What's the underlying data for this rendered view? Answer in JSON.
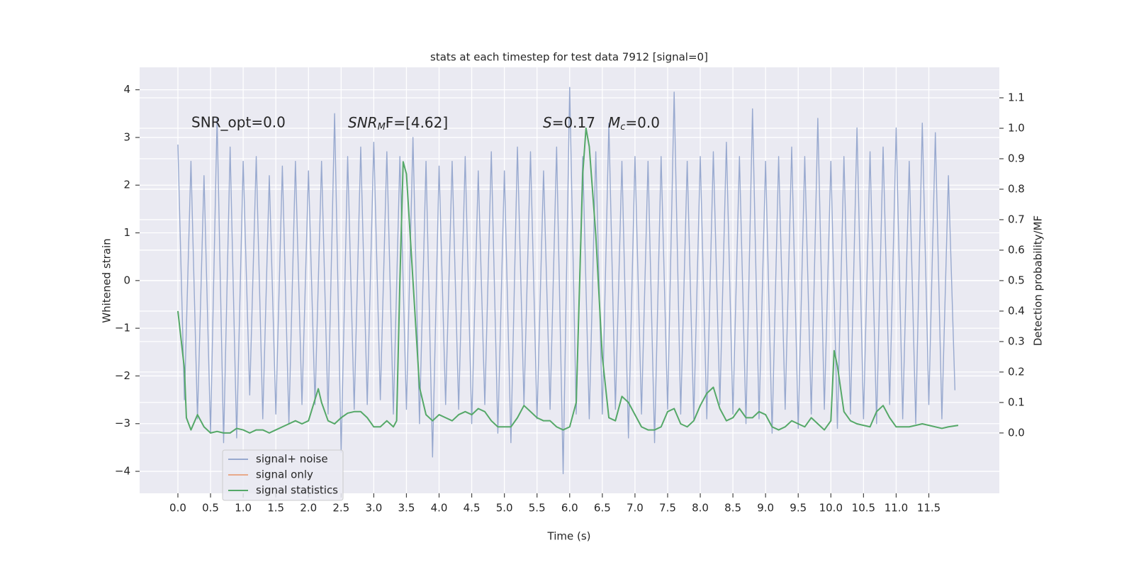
{
  "chart_data": {
    "type": "line",
    "title": "stats at each timestep for test data 7912 [signal=0]",
    "xlabel": "Time (s)",
    "ylabel": "Whitened strain",
    "y2label": "Detection probability/MF",
    "annotations": [
      {
        "text": "SNR_opt=0.0"
      },
      {
        "base": "SNR",
        "sub": "M",
        "rest": "F=[4.62]"
      },
      {
        "base": "S",
        "rest": "=0.17"
      },
      {
        "base": "M",
        "sub": "c",
        "rest": "=0.0"
      }
    ],
    "xlim": [
      -0.586,
      12.58
    ],
    "ylim": [
      -4.46,
      4.47
    ],
    "y2lim": [
      -0.198,
      1.2
    ],
    "xticks": [
      {
        "value": 0,
        "label": "0.0"
      },
      0.5,
      {
        "value": 1,
        "label": "1.0"
      },
      1.5,
      {
        "value": 2,
        "label": "2.0"
      },
      2.5,
      {
        "value": 3,
        "label": "3.0"
      },
      3.5,
      {
        "value": 4,
        "label": "4.0"
      },
      4.5,
      {
        "value": 5,
        "label": "5.0"
      },
      5.5,
      {
        "value": 6,
        "label": "6.0"
      },
      6.5,
      {
        "value": 7,
        "label": "7.0"
      },
      7.5,
      {
        "value": 8,
        "label": "8.0"
      },
      8.5,
      {
        "value": 9,
        "label": "9.0"
      },
      9.5,
      {
        "value": 10,
        "label": "10.0"
      },
      10.5,
      {
        "value": 11,
        "label": "11.0"
      },
      11.5
    ],
    "yticks": [
      {
        "value": -4,
        "label": "−4"
      },
      {
        "value": -3,
        "label": "−3"
      },
      {
        "value": -2,
        "label": "−2"
      },
      {
        "value": -1,
        "label": "−1"
      },
      0,
      1,
      2,
      3,
      4
    ],
    "y2ticks": [
      {
        "value": 0,
        "label": "0.0"
      },
      0.1,
      0.2,
      0.3,
      0.4,
      0.5,
      0.6,
      0.7,
      0.8,
      0.9,
      {
        "value": 1,
        "label": "1.0"
      },
      1.1
    ],
    "grid": true,
    "legend": "lower left",
    "series": [
      {
        "name": "signal+ noise",
        "color": "#98a9cf",
        "x": [
          0.0,
          0.1,
          0.2,
          0.3,
          0.4,
          0.5,
          0.6,
          0.7,
          0.8,
          0.9,
          1.0,
          1.1,
          1.2,
          1.3,
          1.4,
          1.5,
          1.6,
          1.7,
          1.8,
          1.9,
          2.0,
          2.1,
          2.2,
          2.3,
          2.4,
          2.5,
          2.6,
          2.7,
          2.8,
          2.9,
          3.0,
          3.1,
          3.2,
          3.3,
          3.4,
          3.5,
          3.6,
          3.7,
          3.8,
          3.9,
          4.0,
          4.1,
          4.2,
          4.3,
          4.4,
          4.5,
          4.6,
          4.7,
          4.8,
          4.9,
          5.0,
          5.1,
          5.2,
          5.3,
          5.4,
          5.5,
          5.6,
          5.7,
          5.8,
          5.9,
          6.0,
          6.1,
          6.2,
          6.3,
          6.4,
          6.5,
          6.6,
          6.7,
          6.8,
          6.9,
          7.0,
          7.1,
          7.2,
          7.3,
          7.4,
          7.5,
          7.6,
          7.7,
          7.8,
          7.9,
          8.0,
          8.1,
          8.2,
          8.3,
          8.4,
          8.5,
          8.6,
          8.7,
          8.8,
          8.9,
          9.0,
          9.1,
          9.2,
          9.3,
          9.4,
          9.5,
          9.6,
          9.7,
          9.8,
          9.9,
          10.0,
          10.1,
          10.2,
          10.3,
          10.4,
          10.5,
          10.6,
          10.7,
          10.8,
          10.9,
          11.0,
          11.1,
          11.2,
          11.3,
          11.4,
          11.5,
          11.6,
          11.7,
          11.8,
          11.9
        ],
        "values": [
          2.85,
          -2.5,
          2.5,
          -2.9,
          2.2,
          -3.2,
          3.4,
          -3.4,
          2.8,
          -3.3,
          2.5,
          -2.4,
          2.6,
          -2.9,
          2.2,
          -2.8,
          2.4,
          -3.0,
          2.5,
          -2.6,
          2.3,
          -2.6,
          2.5,
          -2.8,
          3.5,
          -3.6,
          2.6,
          -2.7,
          2.8,
          -2.6,
          2.9,
          -2.5,
          2.7,
          -2.8,
          2.6,
          -2.7,
          3.0,
          -3.0,
          2.5,
          -3.7,
          2.4,
          -2.6,
          2.5,
          -2.7,
          2.6,
          -3.0,
          2.3,
          -2.6,
          2.7,
          -3.2,
          2.3,
          -3.4,
          2.8,
          -2.6,
          2.7,
          -2.9,
          2.3,
          -2.7,
          2.8,
          -4.05,
          4.05,
          -2.8,
          2.6,
          -2.9,
          2.7,
          -2.8,
          3.3,
          -2.7,
          2.5,
          -3.3,
          2.6,
          -2.8,
          2.5,
          -3.4,
          2.6,
          -2.7,
          3.95,
          -2.8,
          2.5,
          -2.9,
          2.6,
          -2.9,
          2.7,
          -2.6,
          2.9,
          -2.8,
          2.6,
          -3.0,
          3.6,
          -2.9,
          2.5,
          -3.2,
          2.6,
          -2.7,
          2.8,
          -3.1,
          2.6,
          -2.8,
          3.4,
          -2.7,
          2.5,
          -3.1,
          2.6,
          -2.8,
          3.2,
          -2.9,
          2.7,
          -3.0,
          2.8,
          -2.6,
          3.2,
          -2.9,
          2.5,
          -3.0,
          3.3,
          -2.6,
          3.1,
          -2.9,
          2.2,
          -2.3
        ]
      },
      {
        "name": "signal only",
        "color": "#e8a98a"
      },
      {
        "name": "signal statistics",
        "color": "#55a868",
        "axis": "y2",
        "x": [
          0.0,
          0.1,
          0.13,
          0.2,
          0.3,
          0.4,
          0.5,
          0.6,
          0.7,
          0.8,
          0.9,
          1.0,
          1.1,
          1.2,
          1.3,
          1.4,
          1.5,
          1.6,
          1.7,
          1.8,
          1.9,
          2.0,
          2.1,
          2.15,
          2.2,
          2.3,
          2.4,
          2.5,
          2.6,
          2.7,
          2.8,
          2.9,
          3.0,
          3.1,
          3.2,
          3.3,
          3.35,
          3.4,
          3.45,
          3.5,
          3.6,
          3.7,
          3.8,
          3.9,
          4.0,
          4.1,
          4.2,
          4.3,
          4.4,
          4.5,
          4.6,
          4.7,
          4.8,
          4.9,
          5.0,
          5.1,
          5.2,
          5.3,
          5.4,
          5.5,
          5.6,
          5.7,
          5.8,
          5.9,
          6.0,
          6.1,
          6.2,
          6.25,
          6.3,
          6.4,
          6.5,
          6.6,
          6.7,
          6.8,
          6.9,
          7.0,
          7.1,
          7.2,
          7.3,
          7.4,
          7.5,
          7.6,
          7.7,
          7.8,
          7.9,
          8.0,
          8.1,
          8.2,
          8.3,
          8.4,
          8.5,
          8.6,
          8.7,
          8.8,
          8.9,
          9.0,
          9.1,
          9.2,
          9.3,
          9.4,
          9.5,
          9.6,
          9.7,
          9.8,
          9.9,
          10.0,
          10.05,
          10.1,
          10.2,
          10.3,
          10.4,
          10.5,
          10.6,
          10.7,
          10.8,
          10.9,
          11.0,
          11.2,
          11.4,
          11.5,
          11.7,
          11.8,
          11.95
        ],
        "values": [
          0.4,
          0.21,
          0.05,
          0.01,
          0.06,
          0.02,
          0.0,
          0.005,
          0.0,
          0.0,
          0.015,
          0.01,
          0.0,
          0.01,
          0.01,
          0.0,
          0.01,
          0.02,
          0.03,
          0.04,
          0.03,
          0.04,
          0.11,
          0.145,
          0.1,
          0.04,
          0.03,
          0.05,
          0.065,
          0.07,
          0.07,
          0.05,
          0.02,
          0.02,
          0.04,
          0.02,
          0.04,
          0.5,
          0.89,
          0.85,
          0.5,
          0.15,
          0.06,
          0.04,
          0.06,
          0.05,
          0.04,
          0.06,
          0.07,
          0.06,
          0.08,
          0.07,
          0.04,
          0.02,
          0.02,
          0.02,
          0.05,
          0.09,
          0.07,
          0.05,
          0.04,
          0.04,
          0.02,
          0.01,
          0.02,
          0.1,
          0.85,
          1.0,
          0.94,
          0.65,
          0.25,
          0.05,
          0.04,
          0.12,
          0.1,
          0.06,
          0.02,
          0.01,
          0.01,
          0.02,
          0.07,
          0.08,
          0.03,
          0.02,
          0.04,
          0.09,
          0.13,
          0.15,
          0.08,
          0.04,
          0.05,
          0.08,
          0.05,
          0.05,
          0.07,
          0.06,
          0.02,
          0.01,
          0.02,
          0.04,
          0.03,
          0.02,
          0.05,
          0.03,
          0.01,
          0.04,
          0.27,
          0.22,
          0.07,
          0.04,
          0.03,
          0.025,
          0.02,
          0.07,
          0.09,
          0.05,
          0.02,
          0.02,
          0.03,
          0.025,
          0.015,
          0.02,
          0.025
        ]
      }
    ]
  }
}
